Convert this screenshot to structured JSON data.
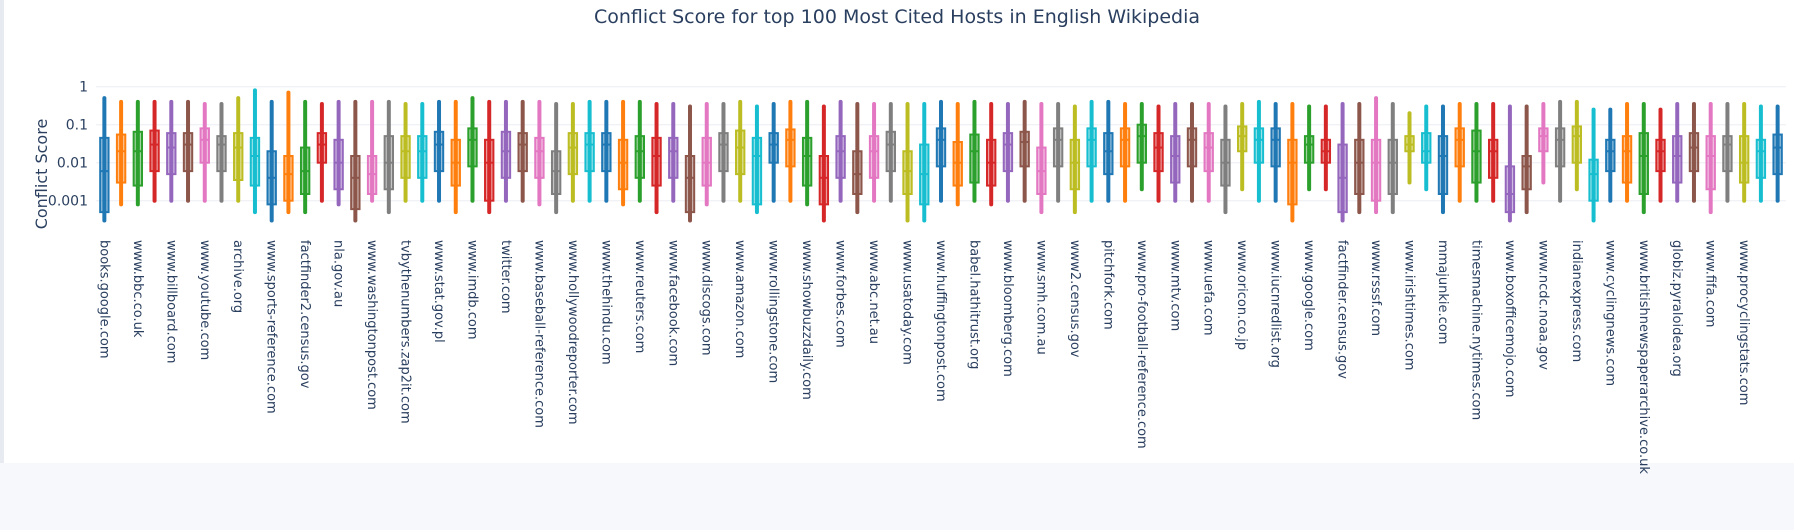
{
  "chart_data": {
    "type": "box",
    "title": "Conflict Score for top 100 Most Cited Hosts in English Wikipedia",
    "ylabel": "Conflict Score",
    "xlabel": "",
    "yscale": "log",
    "ylim": [
      0.00015,
      1.5
    ],
    "yticks": [
      {
        "value": 1,
        "label": "1"
      },
      {
        "value": 0.1,
        "label": "0.1"
      },
      {
        "value": 0.01,
        "label": "0.01"
      },
      {
        "value": 0.001,
        "label": "0.001"
      }
    ],
    "grid": true,
    "legend": "none",
    "palette": [
      "#1f77b4",
      "#ff7f0e",
      "#2ca02c",
      "#d62728",
      "#9467bd",
      "#8c564b",
      "#e377c2",
      "#7f7f7f",
      "#bcbd22",
      "#17becf"
    ],
    "boxes_per_label": 2,
    "labels": [
      "books.google.com",
      "www.bbc.co.uk",
      "www.billboard.com",
      "www.youtube.com",
      "archive.org",
      "www.sports-reference.com",
      "factfinder2.census.gov",
      "nla.gov.au",
      "www.washingtonpost.com",
      "tvbythenumbers.zap2it.com",
      "www.stat.gov.pl",
      "www.imdb.com",
      "twitter.com",
      "www.baseball-reference.com",
      "www.hollywoodreporter.com",
      "www.thehindu.com",
      "www.reuters.com",
      "www.facebook.com",
      "www.discogs.com",
      "www.amazon.com",
      "www.rollingstone.com",
      "www.showbuzzdaily.com",
      "www.forbes.com",
      "www.abc.net.au",
      "www.usatoday.com",
      "www.huffingtonpost.com",
      "babel.hathitrust.org",
      "www.bloomberg.com",
      "www.smh.com.au",
      "www2.census.gov",
      "pitchfork.com",
      "www.pro-football-reference.com",
      "www.mtv.com",
      "www.uefa.com",
      "www.oricon.co.jp",
      "www.iucnredlist.org",
      "www.google.com",
      "factfinder.census.gov",
      "www.rsssf.com",
      "www.irishtimes.com",
      "mmajunkie.com",
      "timesmachine.nytimes.com",
      "www.boxofficemojo.com",
      "www.ncdc.noaa.gov",
      "indianexpress.com",
      "www.cyclingnews.com",
      "www.britishnewspaperarchive.co.uk",
      "globiz.pyraloidea.org",
      "www.fifa.com",
      "www.procyclingstats.com"
    ],
    "boxes": [
      {
        "q1": 0.0005,
        "median": 0.006,
        "q3": 0.045,
        "lo": 0.0003,
        "hi": 0.5
      },
      {
        "q1": 0.003,
        "median": 0.02,
        "q3": 0.055,
        "lo": 0.0008,
        "hi": 0.4
      },
      {
        "q1": 0.0025,
        "median": 0.02,
        "q3": 0.065,
        "lo": 0.0008,
        "hi": 0.4
      },
      {
        "q1": 0.006,
        "median": 0.03,
        "q3": 0.07,
        "lo": 0.001,
        "hi": 0.4
      },
      {
        "q1": 0.005,
        "median": 0.025,
        "q3": 0.06,
        "lo": 0.001,
        "hi": 0.4
      },
      {
        "q1": 0.006,
        "median": 0.03,
        "q3": 0.06,
        "lo": 0.001,
        "hi": 0.4
      },
      {
        "q1": 0.01,
        "median": 0.04,
        "q3": 0.08,
        "lo": 0.001,
        "hi": 0.35
      },
      {
        "q1": 0.006,
        "median": 0.03,
        "q3": 0.05,
        "lo": 0.001,
        "hi": 0.35
      },
      {
        "q1": 0.0035,
        "median": 0.025,
        "q3": 0.06,
        "lo": 0.001,
        "hi": 0.5
      },
      {
        "q1": 0.0025,
        "median": 0.015,
        "q3": 0.045,
        "lo": 0.0005,
        "hi": 0.8
      },
      {
        "q1": 0.0008,
        "median": 0.004,
        "q3": 0.02,
        "lo": 0.0003,
        "hi": 0.4
      },
      {
        "q1": 0.001,
        "median": 0.005,
        "q3": 0.015,
        "lo": 0.0005,
        "hi": 0.7
      },
      {
        "q1": 0.0015,
        "median": 0.006,
        "q3": 0.025,
        "lo": 0.0005,
        "hi": 0.4
      },
      {
        "q1": 0.01,
        "median": 0.03,
        "q3": 0.06,
        "lo": 0.001,
        "hi": 0.35
      },
      {
        "q1": 0.002,
        "median": 0.01,
        "q3": 0.04,
        "lo": 0.0008,
        "hi": 0.4
      },
      {
        "q1": 0.0006,
        "median": 0.004,
        "q3": 0.015,
        "lo": 0.0003,
        "hi": 0.4
      },
      {
        "q1": 0.0015,
        "median": 0.005,
        "q3": 0.015,
        "lo": 0.001,
        "hi": 0.4
      },
      {
        "q1": 0.002,
        "median": 0.01,
        "q3": 0.05,
        "lo": 0.0005,
        "hi": 0.4
      },
      {
        "q1": 0.004,
        "median": 0.02,
        "q3": 0.05,
        "lo": 0.001,
        "hi": 0.35
      },
      {
        "q1": 0.004,
        "median": 0.02,
        "q3": 0.05,
        "lo": 0.001,
        "hi": 0.35
      },
      {
        "q1": 0.006,
        "median": 0.03,
        "q3": 0.065,
        "lo": 0.001,
        "hi": 0.4
      },
      {
        "q1": 0.0025,
        "median": 0.01,
        "q3": 0.04,
        "lo": 0.0005,
        "hi": 0.4
      },
      {
        "q1": 0.008,
        "median": 0.04,
        "q3": 0.08,
        "lo": 0.001,
        "hi": 0.5
      },
      {
        "q1": 0.001,
        "median": 0.01,
        "q3": 0.04,
        "lo": 0.0005,
        "hi": 0.4
      },
      {
        "q1": 0.004,
        "median": 0.02,
        "q3": 0.065,
        "lo": 0.001,
        "hi": 0.4
      },
      {
        "q1": 0.006,
        "median": 0.03,
        "q3": 0.06,
        "lo": 0.001,
        "hi": 0.4
      },
      {
        "q1": 0.004,
        "median": 0.02,
        "q3": 0.045,
        "lo": 0.0008,
        "hi": 0.4
      },
      {
        "q1": 0.0015,
        "median": 0.006,
        "q3": 0.02,
        "lo": 0.0005,
        "hi": 0.35
      },
      {
        "q1": 0.005,
        "median": 0.025,
        "q3": 0.06,
        "lo": 0.001,
        "hi": 0.35
      },
      {
        "q1": 0.006,
        "median": 0.03,
        "q3": 0.06,
        "lo": 0.001,
        "hi": 0.4
      },
      {
        "q1": 0.006,
        "median": 0.03,
        "q3": 0.06,
        "lo": 0.001,
        "hi": 0.4
      },
      {
        "q1": 0.002,
        "median": 0.01,
        "q3": 0.04,
        "lo": 0.0008,
        "hi": 0.4
      },
      {
        "q1": 0.004,
        "median": 0.02,
        "q3": 0.05,
        "lo": 0.001,
        "hi": 0.4
      },
      {
        "q1": 0.0025,
        "median": 0.015,
        "q3": 0.045,
        "lo": 0.0005,
        "hi": 0.35
      },
      {
        "q1": 0.004,
        "median": 0.02,
        "q3": 0.045,
        "lo": 0.001,
        "hi": 0.35
      },
      {
        "q1": 0.0005,
        "median": 0.004,
        "q3": 0.015,
        "lo": 0.0003,
        "hi": 0.3
      },
      {
        "q1": 0.0025,
        "median": 0.01,
        "q3": 0.045,
        "lo": 0.0008,
        "hi": 0.35
      },
      {
        "q1": 0.006,
        "median": 0.03,
        "q3": 0.06,
        "lo": 0.001,
        "hi": 0.35
      },
      {
        "q1": 0.005,
        "median": 0.025,
        "q3": 0.07,
        "lo": 0.001,
        "hi": 0.4
      },
      {
        "q1": 0.0008,
        "median": 0.015,
        "q3": 0.045,
        "lo": 0.0005,
        "hi": 0.3
      },
      {
        "q1": 0.01,
        "median": 0.03,
        "q3": 0.06,
        "lo": 0.001,
        "hi": 0.35
      },
      {
        "q1": 0.008,
        "median": 0.04,
        "q3": 0.075,
        "lo": 0.001,
        "hi": 0.4
      },
      {
        "q1": 0.0025,
        "median": 0.015,
        "q3": 0.045,
        "lo": 0.0008,
        "hi": 0.4
      },
      {
        "q1": 0.0008,
        "median": 0.004,
        "q3": 0.015,
        "lo": 0.0003,
        "hi": 0.3
      },
      {
        "q1": 0.004,
        "median": 0.02,
        "q3": 0.05,
        "lo": 0.001,
        "hi": 0.4
      },
      {
        "q1": 0.0015,
        "median": 0.005,
        "q3": 0.02,
        "lo": 0.0005,
        "hi": 0.35
      },
      {
        "q1": 0.004,
        "median": 0.02,
        "q3": 0.05,
        "lo": 0.001,
        "hi": 0.35
      },
      {
        "q1": 0.006,
        "median": 0.03,
        "q3": 0.065,
        "lo": 0.001,
        "hi": 0.35
      },
      {
        "q1": 0.0015,
        "median": 0.006,
        "q3": 0.02,
        "lo": 0.0003,
        "hi": 0.35
      },
      {
        "q1": 0.0008,
        "median": 0.005,
        "q3": 0.03,
        "lo": 0.0003,
        "hi": 0.35
      },
      {
        "q1": 0.008,
        "median": 0.04,
        "q3": 0.08,
        "lo": 0.001,
        "hi": 0.4
      },
      {
        "q1": 0.0025,
        "median": 0.01,
        "q3": 0.035,
        "lo": 0.0008,
        "hi": 0.35
      },
      {
        "q1": 0.003,
        "median": 0.02,
        "q3": 0.055,
        "lo": 0.001,
        "hi": 0.4
      },
      {
        "q1": 0.0025,
        "median": 0.01,
        "q3": 0.04,
        "lo": 0.0008,
        "hi": 0.35
      },
      {
        "q1": 0.006,
        "median": 0.03,
        "q3": 0.06,
        "lo": 0.001,
        "hi": 0.35
      },
      {
        "q1": 0.008,
        "median": 0.035,
        "q3": 0.065,
        "lo": 0.001,
        "hi": 0.4
      },
      {
        "q1": 0.0015,
        "median": 0.006,
        "q3": 0.025,
        "lo": 0.0005,
        "hi": 0.35
      },
      {
        "q1": 0.008,
        "median": 0.04,
        "q3": 0.08,
        "lo": 0.001,
        "hi": 0.35
      },
      {
        "q1": 0.002,
        "median": 0.01,
        "q3": 0.04,
        "lo": 0.0005,
        "hi": 0.3
      },
      {
        "q1": 0.008,
        "median": 0.04,
        "q3": 0.08,
        "lo": 0.001,
        "hi": 0.4
      },
      {
        "q1": 0.005,
        "median": 0.02,
        "q3": 0.06,
        "lo": 0.001,
        "hi": 0.4
      },
      {
        "q1": 0.008,
        "median": 0.04,
        "q3": 0.08,
        "lo": 0.001,
        "hi": 0.35
      },
      {
        "q1": 0.01,
        "median": 0.05,
        "q3": 0.1,
        "lo": 0.002,
        "hi": 0.35
      },
      {
        "q1": 0.006,
        "median": 0.025,
        "q3": 0.06,
        "lo": 0.001,
        "hi": 0.3
      },
      {
        "q1": 0.003,
        "median": 0.015,
        "q3": 0.05,
        "lo": 0.001,
        "hi": 0.35
      },
      {
        "q1": 0.008,
        "median": 0.04,
        "q3": 0.08,
        "lo": 0.001,
        "hi": 0.35
      },
      {
        "q1": 0.006,
        "median": 0.025,
        "q3": 0.06,
        "lo": 0.001,
        "hi": 0.35
      },
      {
        "q1": 0.0025,
        "median": 0.01,
        "q3": 0.04,
        "lo": 0.0005,
        "hi": 0.3
      },
      {
        "q1": 0.02,
        "median": 0.05,
        "q3": 0.09,
        "lo": 0.002,
        "hi": 0.35
      },
      {
        "q1": 0.01,
        "median": 0.04,
        "q3": 0.08,
        "lo": 0.001,
        "hi": 0.4
      },
      {
        "q1": 0.008,
        "median": 0.04,
        "q3": 0.08,
        "lo": 0.001,
        "hi": 0.35
      },
      {
        "q1": 0.0008,
        "median": 0.01,
        "q3": 0.04,
        "lo": 0.0003,
        "hi": 0.35
      },
      {
        "q1": 0.01,
        "median": 0.03,
        "q3": 0.05,
        "lo": 0.002,
        "hi": 0.3
      },
      {
        "q1": 0.01,
        "median": 0.02,
        "q3": 0.04,
        "lo": 0.002,
        "hi": 0.3
      },
      {
        "q1": 0.0005,
        "median": 0.004,
        "q3": 0.03,
        "lo": 0.0003,
        "hi": 0.35
      },
      {
        "q1": 0.0015,
        "median": 0.01,
        "q3": 0.04,
        "lo": 0.0005,
        "hi": 0.35
      },
      {
        "q1": 0.001,
        "median": 0.01,
        "q3": 0.04,
        "lo": 0.0005,
        "hi": 0.5
      },
      {
        "q1": 0.0015,
        "median": 0.01,
        "q3": 0.04,
        "lo": 0.0005,
        "hi": 0.35
      },
      {
        "q1": 0.02,
        "median": 0.03,
        "q3": 0.05,
        "lo": 0.003,
        "hi": 0.2
      },
      {
        "q1": 0.01,
        "median": 0.02,
        "q3": 0.06,
        "lo": 0.002,
        "hi": 0.3
      },
      {
        "q1": 0.0015,
        "median": 0.015,
        "q3": 0.05,
        "lo": 0.0005,
        "hi": 0.3
      },
      {
        "q1": 0.008,
        "median": 0.04,
        "q3": 0.08,
        "lo": 0.001,
        "hi": 0.35
      },
      {
        "q1": 0.003,
        "median": 0.02,
        "q3": 0.07,
        "lo": 0.001,
        "hi": 0.35
      },
      {
        "q1": 0.004,
        "median": 0.02,
        "q3": 0.04,
        "lo": 0.001,
        "hi": 0.35
      },
      {
        "q1": 0.0005,
        "median": 0.0015,
        "q3": 0.008,
        "lo": 0.0003,
        "hi": 0.3
      },
      {
        "q1": 0.002,
        "median": 0.008,
        "q3": 0.015,
        "lo": 0.0005,
        "hi": 0.3
      },
      {
        "q1": 0.02,
        "median": 0.05,
        "q3": 0.08,
        "lo": 0.003,
        "hi": 0.35
      },
      {
        "q1": 0.008,
        "median": 0.04,
        "q3": 0.08,
        "lo": 0.001,
        "hi": 0.4
      },
      {
        "q1": 0.01,
        "median": 0.05,
        "q3": 0.09,
        "lo": 0.002,
        "hi": 0.4
      },
      {
        "q1": 0.001,
        "median": 0.005,
        "q3": 0.012,
        "lo": 0.0003,
        "hi": 0.25
      },
      {
        "q1": 0.006,
        "median": 0.02,
        "q3": 0.04,
        "lo": 0.001,
        "hi": 0.25
      },
      {
        "q1": 0.003,
        "median": 0.02,
        "q3": 0.05,
        "lo": 0.001,
        "hi": 0.35
      },
      {
        "q1": 0.0015,
        "median": 0.015,
        "q3": 0.06,
        "lo": 0.0005,
        "hi": 0.35
      },
      {
        "q1": 0.006,
        "median": 0.02,
        "q3": 0.04,
        "lo": 0.001,
        "hi": 0.25
      },
      {
        "q1": 0.003,
        "median": 0.015,
        "q3": 0.05,
        "lo": 0.001,
        "hi": 0.35
      },
      {
        "q1": 0.006,
        "median": 0.025,
        "q3": 0.06,
        "lo": 0.001,
        "hi": 0.35
      },
      {
        "q1": 0.002,
        "median": 0.015,
        "q3": 0.05,
        "lo": 0.0005,
        "hi": 0.35
      },
      {
        "q1": 0.006,
        "median": 0.03,
        "q3": 0.05,
        "lo": 0.001,
        "hi": 0.35
      },
      {
        "q1": 0.003,
        "median": 0.01,
        "q3": 0.05,
        "lo": 0.001,
        "hi": 0.35
      },
      {
        "q1": 0.004,
        "median": 0.02,
        "q3": 0.04,
        "lo": 0.001,
        "hi": 0.3
      },
      {
        "q1": 0.005,
        "median": 0.025,
        "q3": 0.055,
        "lo": 0.001,
        "hi": 0.3
      }
    ]
  }
}
